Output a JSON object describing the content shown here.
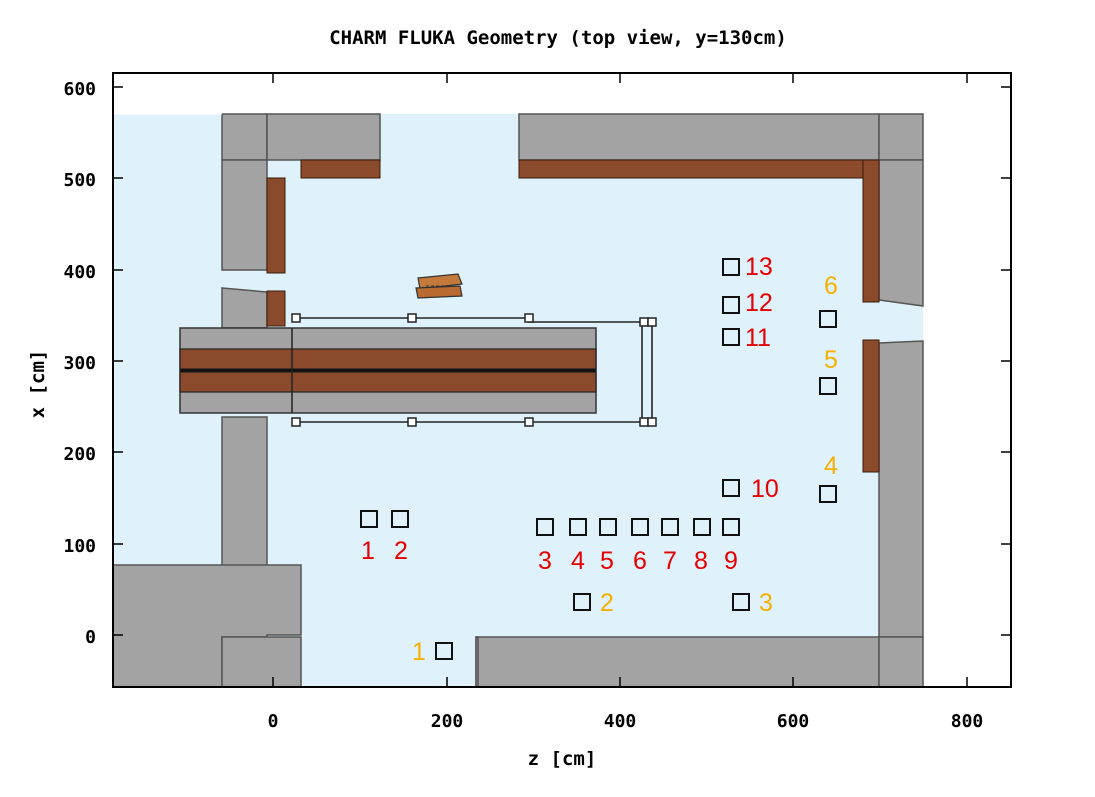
{
  "title": "CHARM FLUKA Geometry (top view, y=130cm)",
  "x_axis": {
    "label": "z [cm]",
    "ticks": [
      "0",
      "200",
      "400",
      "600",
      "800"
    ]
  },
  "y_axis": {
    "label": "x [cm]",
    "ticks": [
      "0",
      "100",
      "200",
      "300",
      "400",
      "500",
      "600"
    ]
  },
  "colors": {
    "air": "#dff2fb",
    "concrete": "#a3a3a3",
    "iron": "#8b4a2b",
    "red_labels": "#e60000",
    "orange_labels": "#f5b000"
  },
  "positions_red": [
    "1",
    "2",
    "3",
    "4",
    "5",
    "6",
    "7",
    "8",
    "9",
    "10",
    "11",
    "12",
    "13"
  ],
  "positions_orange": [
    "1",
    "2",
    "3",
    "4",
    "5",
    "6"
  ]
}
